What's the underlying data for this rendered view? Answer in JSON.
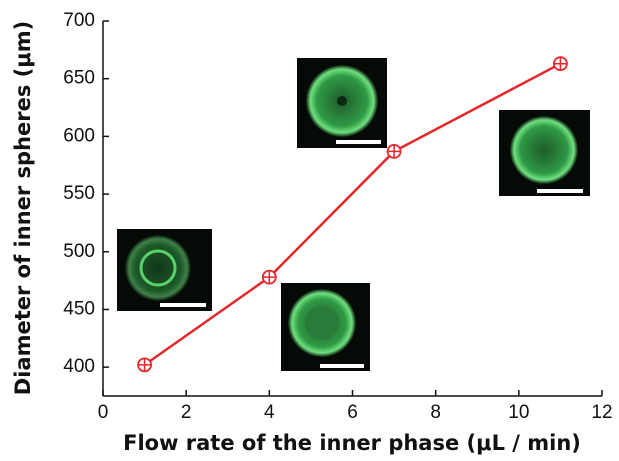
{
  "chart_data": {
    "type": "line",
    "x_label": "Flow rate of the inner phase (μL / min)",
    "y_label": "Diameter of inner spheres (μm)",
    "x": [
      1,
      4,
      7,
      11
    ],
    "series": [
      {
        "color": "#e3272b",
        "values": [
          402,
          478,
          587,
          663
        ]
      }
    ],
    "xlim": [
      0,
      12
    ],
    "xticks": [
      0,
      2,
      4,
      6,
      8,
      10,
      12
    ],
    "ylim": [
      375,
      700
    ],
    "yticks": [
      400,
      450,
      500,
      550,
      600,
      650,
      700
    ]
  }
}
